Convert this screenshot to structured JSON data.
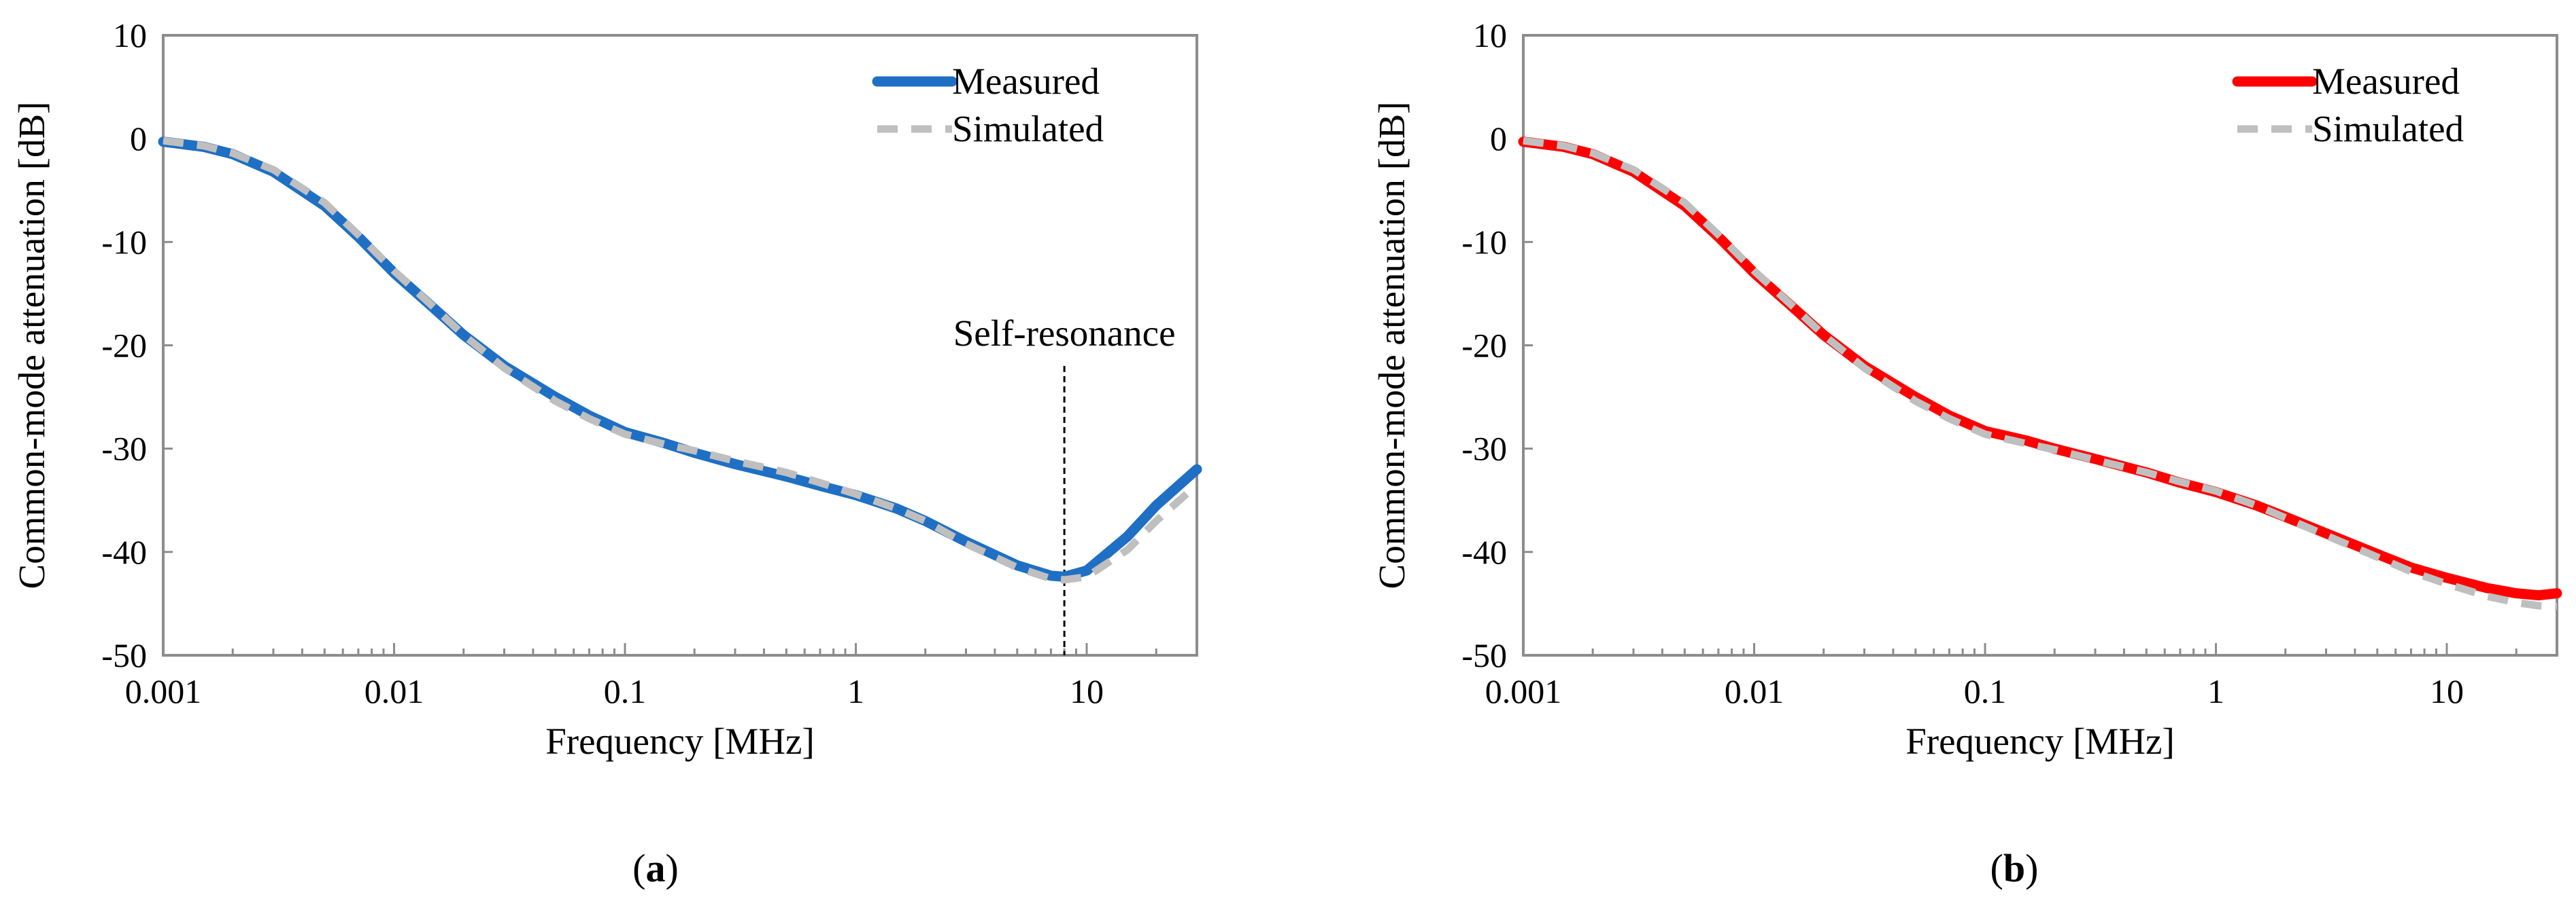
{
  "chart_data": [
    {
      "type": "line",
      "panel": "a",
      "caption": "a",
      "xlabel": "Frequency [MHz]",
      "ylabel": "Common-mode attenuation [dB]",
      "xscale": "log",
      "xlim": [
        0.001,
        30
      ],
      "ylim": [
        -50,
        10
      ],
      "xticks": [
        0.001,
        0.01,
        0.1,
        1,
        10
      ],
      "xtick_labels": [
        "0.001",
        "0.01",
        "0.1",
        "1",
        "10"
      ],
      "yticks": [
        10,
        0,
        -10,
        -20,
        -30,
        -40,
        -50
      ],
      "ytick_labels": [
        "10",
        "0",
        "-10",
        "-20",
        "-30",
        "-40",
        "-50"
      ],
      "grid": false,
      "legend_position": "top-right",
      "series": [
        {
          "name": "Measured",
          "color": "#1f6fc4",
          "style": "solid",
          "x": [
            0.001,
            0.0015,
            0.002,
            0.003,
            0.005,
            0.007,
            0.01,
            0.015,
            0.02,
            0.03,
            0.05,
            0.07,
            0.1,
            0.15,
            0.2,
            0.3,
            0.5,
            0.7,
            1,
            1.5,
            2,
            3,
            5,
            7,
            8,
            10,
            15,
            20,
            30
          ],
          "y": [
            -0.3,
            -0.8,
            -1.5,
            -3.2,
            -6.5,
            -9.5,
            -13,
            -16.5,
            -19,
            -22,
            -25,
            -26.8,
            -28.4,
            -29.5,
            -30.4,
            -31.5,
            -32.7,
            -33.6,
            -34.5,
            -35.8,
            -37,
            -39,
            -41.3,
            -42.3,
            -42.4,
            -41.8,
            -38.5,
            -35.5,
            -32
          ]
        },
        {
          "name": "Simulated",
          "color": "#bfbfbf",
          "style": "dashed",
          "x": [
            0.001,
            0.0015,
            0.002,
            0.003,
            0.005,
            0.007,
            0.01,
            0.015,
            0.02,
            0.03,
            0.05,
            0.07,
            0.1,
            0.15,
            0.2,
            0.3,
            0.5,
            0.7,
            1,
            1.5,
            2,
            3,
            5,
            7,
            8,
            10,
            15,
            20,
            30
          ],
          "y": [
            -0.2,
            -0.7,
            -1.4,
            -3,
            -6.2,
            -9.3,
            -12.8,
            -16.4,
            -19,
            -22.2,
            -25.4,
            -27.1,
            -28.6,
            -29.6,
            -30.2,
            -31.2,
            -32.3,
            -33.3,
            -34.4,
            -35.8,
            -37,
            -39.2,
            -41.5,
            -42.6,
            -42.7,
            -42.4,
            -39.8,
            -37,
            -33.5
          ]
        }
      ],
      "annotation": {
        "text": "Self-resonance",
        "x": 8,
        "line_from_y": -22,
        "line_to_y": -50
      }
    },
    {
      "type": "line",
      "panel": "b",
      "caption": "b",
      "xlabel": "Frequency [MHz]",
      "ylabel": "Common-mode attenuation [dB]",
      "xscale": "log",
      "xlim": [
        0.001,
        30
      ],
      "ylim": [
        -50,
        10
      ],
      "xticks": [
        0.001,
        0.01,
        0.1,
        1,
        10
      ],
      "xtick_labels": [
        "0.001",
        "0.01",
        "0.1",
        "1",
        "10"
      ],
      "yticks": [
        10,
        0,
        -10,
        -20,
        -30,
        -40,
        -50
      ],
      "ytick_labels": [
        "10",
        "0",
        "-10",
        "-20",
        "-30",
        "-40",
        "-50"
      ],
      "grid": false,
      "legend_position": "top-right",
      "series": [
        {
          "name": "Measured",
          "color": "#ff0000",
          "style": "solid",
          "x": [
            0.001,
            0.0015,
            0.002,
            0.003,
            0.005,
            0.007,
            0.01,
            0.015,
            0.02,
            0.03,
            0.05,
            0.07,
            0.1,
            0.15,
            0.2,
            0.3,
            0.5,
            0.7,
            1,
            1.5,
            2,
            3,
            5,
            7,
            10,
            15,
            20,
            25,
            30
          ],
          "y": [
            -0.3,
            -0.8,
            -1.5,
            -3.2,
            -6.5,
            -9.5,
            -13,
            -16.5,
            -19,
            -22,
            -25,
            -26.8,
            -28.3,
            -29.2,
            -30,
            -31,
            -32.3,
            -33.3,
            -34.2,
            -35.5,
            -36.6,
            -38.2,
            -40.2,
            -41.5,
            -42.5,
            -43.5,
            -44,
            -44.2,
            -44
          ]
        },
        {
          "name": "Simulated",
          "color": "#bfbfbf",
          "style": "dashed",
          "x": [
            0.001,
            0.0015,
            0.002,
            0.003,
            0.005,
            0.007,
            0.01,
            0.015,
            0.02,
            0.03,
            0.05,
            0.07,
            0.1,
            0.15,
            0.2,
            0.3,
            0.5,
            0.7,
            1,
            1.5,
            2,
            3,
            5,
            7,
            10,
            15,
            20,
            25,
            30
          ],
          "y": [
            -0.2,
            -0.7,
            -1.4,
            -3,
            -6.2,
            -9.3,
            -12.8,
            -16.4,
            -19,
            -22.2,
            -25.4,
            -27.1,
            -28.6,
            -29.5,
            -30.1,
            -31.1,
            -32.3,
            -33.2,
            -34.1,
            -35.5,
            -36.7,
            -38.4,
            -40.5,
            -41.9,
            -43.1,
            -44.3,
            -44.9,
            -45.2,
            -45.3
          ]
        }
      ]
    }
  ]
}
